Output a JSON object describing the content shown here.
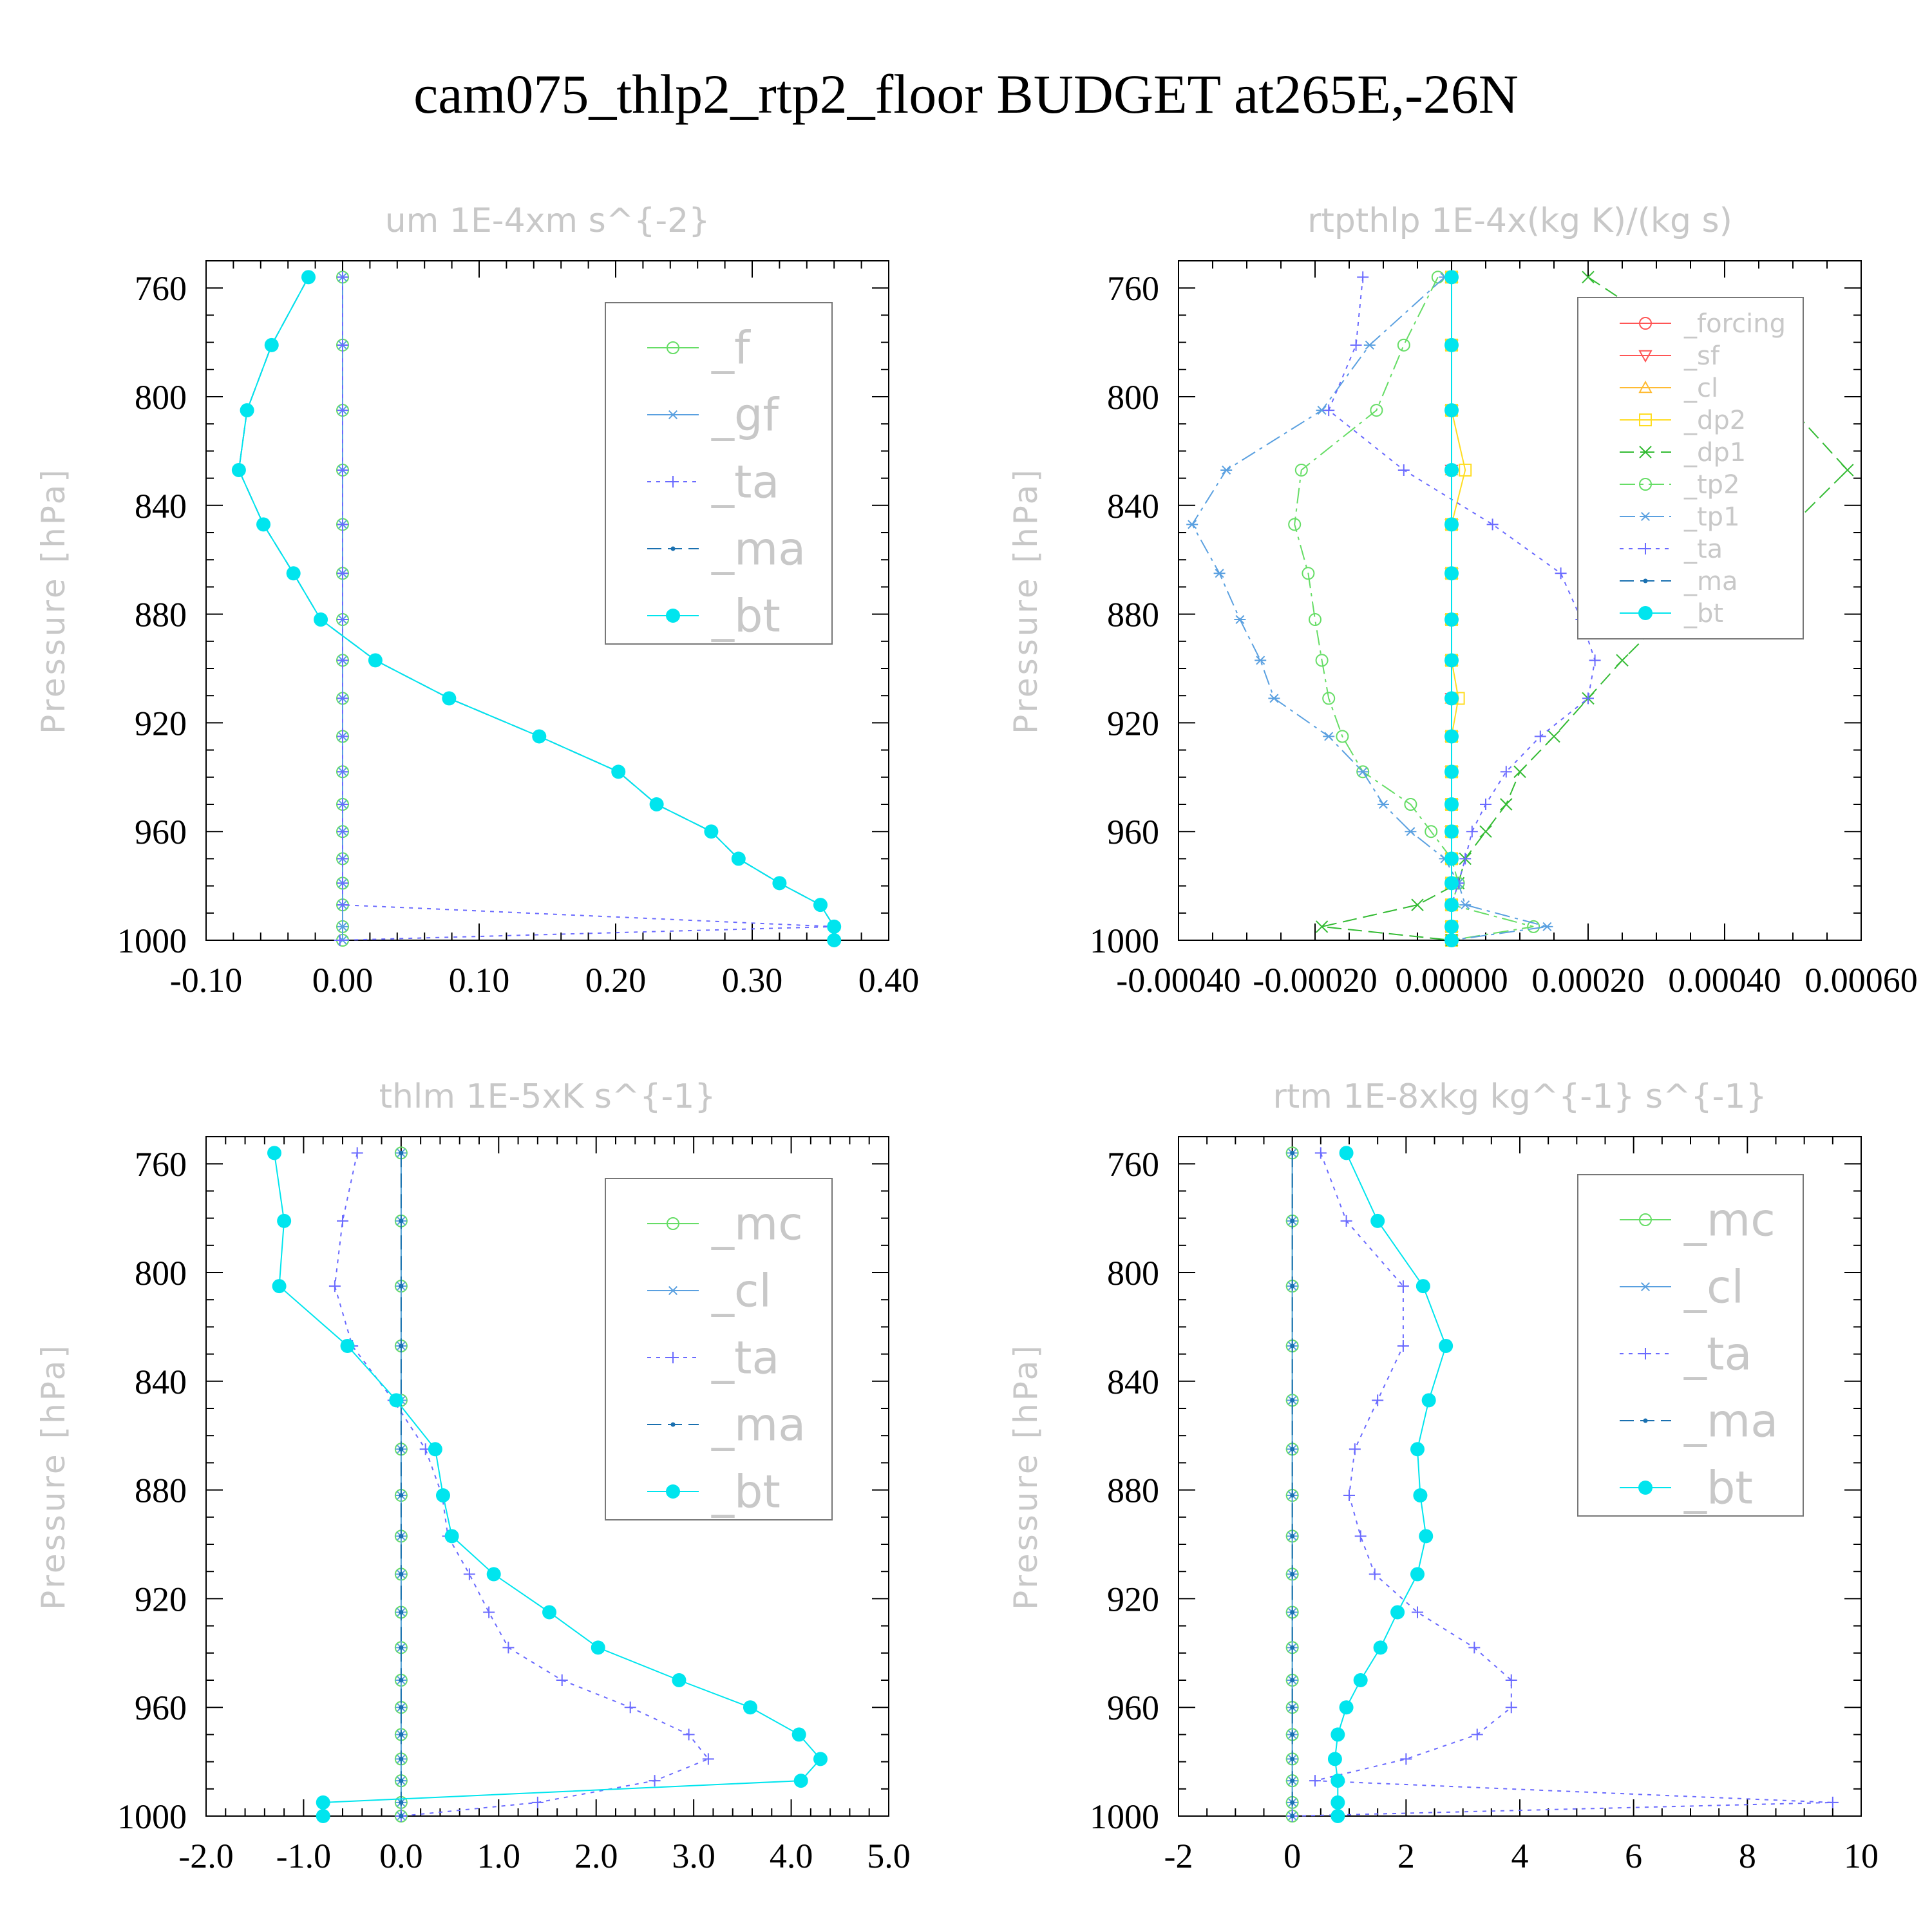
{
  "title": "cam075_thlp2_rtp2_floor  BUDGET at265E,-26N",
  "chart_data": [
    {
      "type": "line",
      "title": "um   1E-4xm s^{-2}",
      "ylabel": "Pressure [hPa]",
      "xlim": [
        -0.1,
        0.4
      ],
      "ylim": [
        1000,
        750
      ],
      "xticks": [
        "-0.10",
        "0.00",
        "0.10",
        "0.20",
        "0.30",
        "0.40"
      ],
      "yticks": [
        "760",
        "800",
        "840",
        "880",
        "920",
        "960",
        "1000"
      ],
      "legend": "top-right",
      "levels": [
        756,
        781,
        805,
        827,
        847,
        865,
        882,
        897,
        911,
        925,
        938,
        950,
        960,
        970,
        979,
        987,
        995,
        1000
      ],
      "series": [
        {
          "name": "_f",
          "color": "#66dd66",
          "marker": "circle-open",
          "values": [
            0,
            0,
            0,
            0,
            0,
            0,
            0,
            0,
            0,
            0,
            0,
            0,
            0,
            0,
            0,
            0,
            0,
            0
          ]
        },
        {
          "name": "_gf",
          "color": "#5aa0e0",
          "marker": "asterisk",
          "values": [
            0,
            0,
            0,
            0,
            0,
            0,
            0,
            0,
            0,
            0,
            0,
            0,
            0,
            0,
            0,
            0,
            0,
            0
          ]
        },
        {
          "name": "_ta",
          "color": "#6a6aff",
          "marker": "plus",
          "dash": "dot",
          "values": [
            0,
            0,
            0,
            0,
            0,
            0,
            0,
            0,
            0,
            0,
            0,
            0,
            0,
            0,
            0,
            0,
            0.36,
            -0.002
          ]
        },
        {
          "name": "_ma",
          "color": "#1a70b0",
          "marker": "dot",
          "dash": "dash",
          "values": [
            -0.025,
            -0.052,
            -0.07,
            -0.076,
            -0.058,
            -0.036,
            -0.016,
            0.024,
            0.078,
            0.144,
            0.202,
            0.23,
            0.27,
            0.29,
            0.32,
            0.35,
            0.36,
            0.36
          ]
        },
        {
          "name": "_bt",
          "color": "#00e5ee",
          "marker": "filled",
          "values": [
            -0.025,
            -0.052,
            -0.07,
            -0.076,
            -0.058,
            -0.036,
            -0.016,
            0.024,
            0.078,
            0.144,
            0.202,
            0.23,
            0.27,
            0.29,
            0.32,
            0.35,
            0.36,
            0.36
          ]
        }
      ]
    },
    {
      "type": "line",
      "title": "rtpthlp   1E-4x(kg K)/(kg s)",
      "ylabel": "Pressure [hPa]",
      "xlim": [
        -0.0004,
        0.0006
      ],
      "ylim": [
        1000,
        750
      ],
      "xticks": [
        "-0.00040",
        "-0.00020",
        "0.00000",
        "0.00020",
        "0.00040",
        "0.00060"
      ],
      "yticks": [
        "760",
        "800",
        "840",
        "880",
        "920",
        "960",
        "1000"
      ],
      "legend": "top-right",
      "levels": [
        756,
        781,
        805,
        827,
        847,
        865,
        882,
        897,
        911,
        925,
        938,
        950,
        960,
        970,
        979,
        987,
        995,
        1000
      ],
      "series": [
        {
          "name": "_forcing",
          "color": "#ff5555",
          "marker": "circle-open",
          "values": [
            0,
            0,
            0,
            0,
            0,
            0,
            0,
            0,
            0,
            0,
            0,
            0,
            0,
            0,
            0,
            0,
            0,
            0
          ]
        },
        {
          "name": "_sf",
          "color": "#ff5555",
          "marker": "triangle-down",
          "values": [
            0,
            0,
            0,
            0,
            0,
            0,
            0,
            0,
            0,
            0,
            0,
            0,
            0,
            0,
            0,
            0,
            0,
            0
          ]
        },
        {
          "name": "_cl",
          "color": "#ffbb33",
          "marker": "triangle-up",
          "values": [
            0,
            0,
            0,
            0,
            0,
            0,
            0,
            0,
            0,
            0,
            0,
            0,
            0,
            0,
            0,
            0,
            0,
            0
          ]
        },
        {
          "name": "_dp2",
          "color": "#ffdd22",
          "marker": "square-open",
          "values": [
            0,
            0,
            0,
            2e-05,
            0,
            0,
            0,
            0,
            1e-05,
            0,
            0,
            0,
            0,
            0,
            0,
            0,
            0,
            0
          ]
        },
        {
          "name": "_dp1",
          "color": "#33bb33",
          "marker": "cross",
          "dash": "dash",
          "values": [
            0.0002,
            0.00035,
            0.0005,
            0.00058,
            0.0005,
            0.0004,
            0.00031,
            0.00025,
            0.0002,
            0.00015,
            0.0001,
            8e-05,
            5e-05,
            2e-05,
            1e-05,
            -5e-05,
            -0.00019,
            0
          ]
        },
        {
          "name": "_tp2",
          "color": "#66dd66",
          "marker": "circle-open",
          "dash": "dashdot",
          "values": [
            -2e-05,
            -7e-05,
            -0.00011,
            -0.00022,
            -0.00023,
            -0.00021,
            -0.0002,
            -0.00019,
            -0.00018,
            -0.00016,
            -0.00013,
            -6e-05,
            -3e-05,
            0,
            1e-05,
            0,
            0.00012,
            0
          ]
        },
        {
          "name": "_tp1",
          "color": "#5aa0e0",
          "marker": "asterisk",
          "dash": "dashdot",
          "values": [
            -1e-05,
            -0.00012,
            -0.00019,
            -0.00033,
            -0.00038,
            -0.00034,
            -0.00031,
            -0.00028,
            -0.00026,
            -0.00018,
            -0.00013,
            -0.0001,
            -6e-05,
            -1e-05,
            1e-05,
            2e-05,
            0.00014,
            0
          ]
        },
        {
          "name": "_ta",
          "color": "#6a6aff",
          "marker": "plus",
          "dash": "dot",
          "values": [
            -0.00013,
            -0.00014,
            -0.00018,
            -7e-05,
            6e-05,
            0.00016,
            0.00019,
            0.00021,
            0.0002,
            0.00013,
            8e-05,
            5e-05,
            3e-05,
            2e-05,
            1e-05,
            0,
            0,
            0
          ]
        },
        {
          "name": "_ma",
          "color": "#1a70b0",
          "marker": "dot",
          "dash": "dash",
          "values": [
            0,
            0,
            0,
            0,
            0,
            0,
            0,
            0,
            0,
            0,
            0,
            0,
            0,
            0,
            0,
            0,
            0,
            0
          ]
        },
        {
          "name": "_bt",
          "color": "#00e5ee",
          "marker": "filled",
          "values": [
            0,
            0,
            0,
            0,
            0,
            0,
            0,
            0,
            0,
            0,
            0,
            0,
            0,
            0,
            0,
            0,
            0,
            0
          ]
        }
      ]
    },
    {
      "type": "line",
      "title": "thlm   1E-5xK s^{-1}",
      "ylabel": "Pressure [hPa]",
      "xlim": [
        -2.0,
        5.0
      ],
      "ylim": [
        1000,
        750
      ],
      "xticks": [
        "-2.0",
        "-1.0",
        "0.0",
        "1.0",
        "2.0",
        "3.0",
        "4.0",
        "5.0"
      ],
      "yticks": [
        "760",
        "800",
        "840",
        "880",
        "920",
        "960",
        "1000"
      ],
      "legend": "top-right",
      "levels": [
        756,
        781,
        805,
        827,
        847,
        865,
        882,
        897,
        911,
        925,
        938,
        950,
        960,
        970,
        979,
        987,
        995,
        1000
      ],
      "series": [
        {
          "name": "_mc",
          "color": "#66dd66",
          "marker": "circle-open",
          "values": [
            0,
            0,
            0,
            0,
            0,
            0,
            0,
            0,
            0,
            0,
            0,
            0,
            0,
            0,
            0,
            0,
            0,
            0
          ]
        },
        {
          "name": "_cl",
          "color": "#5aa0e0",
          "marker": "asterisk",
          "values": [
            0,
            0,
            0,
            0,
            0,
            0,
            0,
            0,
            0,
            0,
            0,
            0,
            0,
            0,
            0,
            0,
            0,
            0
          ]
        },
        {
          "name": "_ta",
          "color": "#6a6aff",
          "marker": "plus",
          "dash": "dot",
          "values": [
            -0.45,
            -0.6,
            -0.68,
            -0.5,
            -0.08,
            0.25,
            0.42,
            0.48,
            0.7,
            0.9,
            1.1,
            1.65,
            2.35,
            2.95,
            3.15,
            2.6,
            1.4,
            0
          ]
        },
        {
          "name": "_ma",
          "color": "#1a70b0",
          "marker": "dot",
          "dash": "dash",
          "values": [
            0,
            0,
            0,
            0,
            0,
            0,
            0,
            0,
            0,
            0,
            0,
            0,
            0,
            0,
            0,
            0,
            0,
            0
          ]
        },
        {
          "name": "_bt",
          "color": "#00e5ee",
          "marker": "filled",
          "values": [
            -1.3,
            -1.2,
            -1.25,
            -0.55,
            -0.05,
            0.35,
            0.43,
            0.52,
            0.95,
            1.52,
            2.02,
            2.85,
            3.58,
            4.08,
            4.3,
            4.1,
            -0.8,
            -0.8
          ]
        }
      ]
    },
    {
      "type": "line",
      "title": "rtm   1E-8xkg kg^{-1} s^{-1}",
      "ylabel": "Pressure [hPa]",
      "xlim": [
        -2,
        10
      ],
      "ylim": [
        1000,
        750
      ],
      "xticks": [
        "-2",
        "0",
        "2",
        "4",
        "6",
        "8",
        "10"
      ],
      "yticks": [
        "760",
        "800",
        "840",
        "880",
        "920",
        "960",
        "1000"
      ],
      "legend": "top-right",
      "levels": [
        756,
        781,
        805,
        827,
        847,
        865,
        882,
        897,
        911,
        925,
        938,
        950,
        960,
        970,
        979,
        987,
        995,
        1000
      ],
      "series": [
        {
          "name": "_mc",
          "color": "#66dd66",
          "marker": "circle-open",
          "values": [
            0,
            0,
            0,
            0,
            0,
            0,
            0,
            0,
            0,
            0,
            0,
            0,
            0,
            0,
            0,
            0,
            0,
            0
          ]
        },
        {
          "name": "_cl",
          "color": "#5aa0e0",
          "marker": "asterisk",
          "values": [
            0,
            0,
            0,
            0,
            0,
            0,
            0,
            0,
            0,
            0,
            0,
            0,
            0,
            0,
            0,
            0,
            0,
            0
          ]
        },
        {
          "name": "_ta",
          "color": "#6a6aff",
          "marker": "plus",
          "dash": "dot",
          "values": [
            0.5,
            0.95,
            1.95,
            1.95,
            1.5,
            1.1,
            1.0,
            1.2,
            1.45,
            2.2,
            3.2,
            3.85,
            3.85,
            3.25,
            2.0,
            0.4,
            9.5,
            0
          ]
        },
        {
          "name": "_ma",
          "color": "#1a70b0",
          "marker": "dot",
          "dash": "dash",
          "values": [
            0,
            0,
            0,
            0,
            0,
            0,
            0,
            0,
            0,
            0,
            0,
            0,
            0,
            0,
            0,
            0,
            0,
            0
          ]
        },
        {
          "name": "_bt",
          "color": "#00e5ee",
          "marker": "filled",
          "values": [
            0.95,
            1.5,
            2.3,
            2.7,
            2.4,
            2.2,
            2.25,
            2.35,
            2.2,
            1.85,
            1.55,
            1.2,
            0.95,
            0.8,
            0.75,
            0.8,
            0.8,
            0.8
          ]
        }
      ]
    }
  ]
}
